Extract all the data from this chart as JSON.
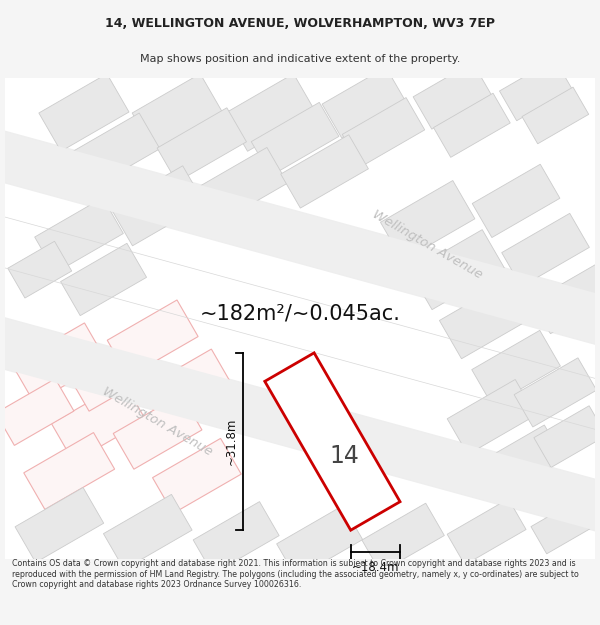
{
  "title_line1": "14, WELLINGTON AVENUE, WOLVERHAMPTON, WV3 7EP",
  "title_line2": "Map shows position and indicative extent of the property.",
  "area_text": "~182m²/~0.045ac.",
  "label_number": "14",
  "dim_height": "~31.8m",
  "dim_width": "~18.4m",
  "street_label": "Wellington Avenue",
  "footer_text": "Contains OS data © Crown copyright and database right 2021. This information is subject to Crown copyright and database rights 2023 and is reproduced with the permission of HM Land Registry. The polygons (including the associated geometry, namely x, y co-ordinates) are subject to Crown copyright and database rights 2023 Ordnance Survey 100026316.",
  "bg_color": "#f5f5f5",
  "map_bg": "#ffffff",
  "plot_outline_color": "#cc0000",
  "bldg_fill": "#e8e8e8",
  "bldg_edge": "#cccccc",
  "pink_fill": "#fdf5f5",
  "pink_edge": "#f0b0b0",
  "road_color": "#f0f0f0",
  "street_text_color": "#c0c0c0",
  "title_color": "#222222",
  "subtitle_color": "#333333",
  "footer_color": "#333333",
  "dim_color": "#111111",
  "label_color": "#444444"
}
